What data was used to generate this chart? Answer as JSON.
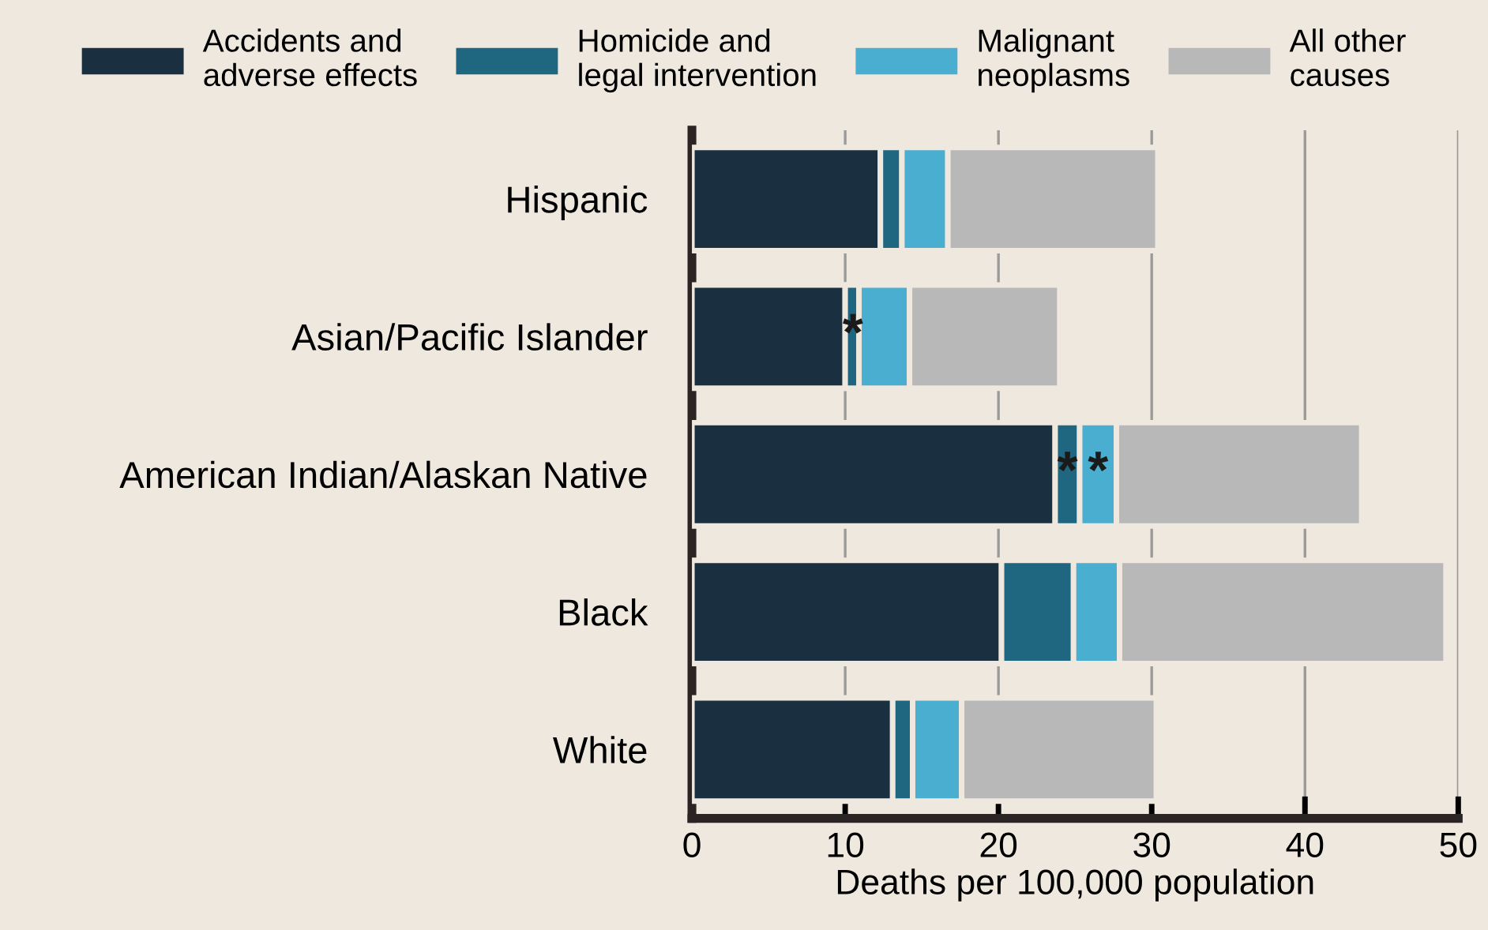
{
  "chart_data": {
    "type": "bar",
    "orientation": "horizontal",
    "stacked": true,
    "xlabel": "Deaths per 100,000 population",
    "categories": [
      "Hispanic",
      "Asian/Pacific Islander",
      "American Indian/Alaskan Native",
      "Black",
      "White"
    ],
    "series": [
      {
        "name": "Accidents and\nadverse effects",
        "color": "#1a3040",
        "values": [
          12.3,
          10.0,
          23.7,
          20.2,
          13.1
        ]
      },
      {
        "name": "Homicide and\nlegal intervention",
        "color": "#1f6680",
        "values": [
          1.4,
          0.9,
          1.6,
          4.7,
          1.3
        ]
      },
      {
        "name": "Malignant\nneoplasms",
        "color": "#4aaed0",
        "values": [
          3.0,
          3.3,
          2.4,
          3.0,
          3.2
        ]
      },
      {
        "name": "All other\ncauses",
        "color": "#b8b8b8",
        "values": [
          13.7,
          9.8,
          16.0,
          21.3,
          12.7
        ]
      }
    ],
    "xlim": [
      0,
      50
    ],
    "xticks": [
      0,
      10,
      20,
      30,
      40,
      50
    ],
    "grid": "x",
    "legend": "top",
    "annotations": [
      {
        "text": "*",
        "x": 10.5,
        "y": "Asian/Pacific Islander"
      },
      {
        "text": "*",
        "x": 24.5,
        "y": "American Indian/Alaskan Native"
      },
      {
        "text": "*",
        "x": 26.5,
        "y": "American Indian/Alaskan Native"
      }
    ]
  }
}
